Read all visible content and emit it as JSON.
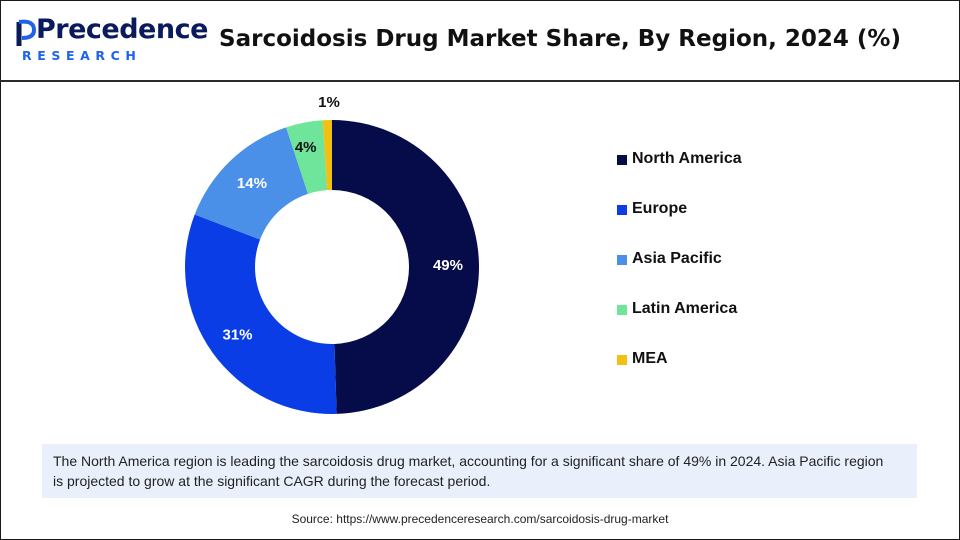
{
  "brand": {
    "name": "Precedence",
    "sub": "RESEARCH"
  },
  "header": {
    "title": "Sarcoidosis Drug Market Share, By Region, 2024 (%)"
  },
  "chart_data": {
    "type": "pie",
    "subtype": "donut",
    "title": "Sarcoidosis Drug Market Share, By Region, 2024 (%)",
    "unit": "%",
    "categories": [
      "North America",
      "Europe",
      "Asia Pacific",
      "Latin America",
      "MEA"
    ],
    "values": [
      49,
      31,
      14,
      4,
      1
    ],
    "labels": [
      "49%",
      "31%",
      "14%",
      "4%",
      "1%"
    ],
    "colors": [
      "#060b4a",
      "#0a3de6",
      "#4a90e8",
      "#6ee59a",
      "#f2c012"
    ],
    "legend_position": "right"
  },
  "note": {
    "text": "The North America region is leading the sarcoidosis drug market, accounting for a significant share of 49% in 2024. Asia Pacific region is projected to grow at the significant CAGR during the forecast period."
  },
  "source": {
    "text": "Source: https://www.precedenceresearch.com/sarcoidosis-drug-market"
  }
}
